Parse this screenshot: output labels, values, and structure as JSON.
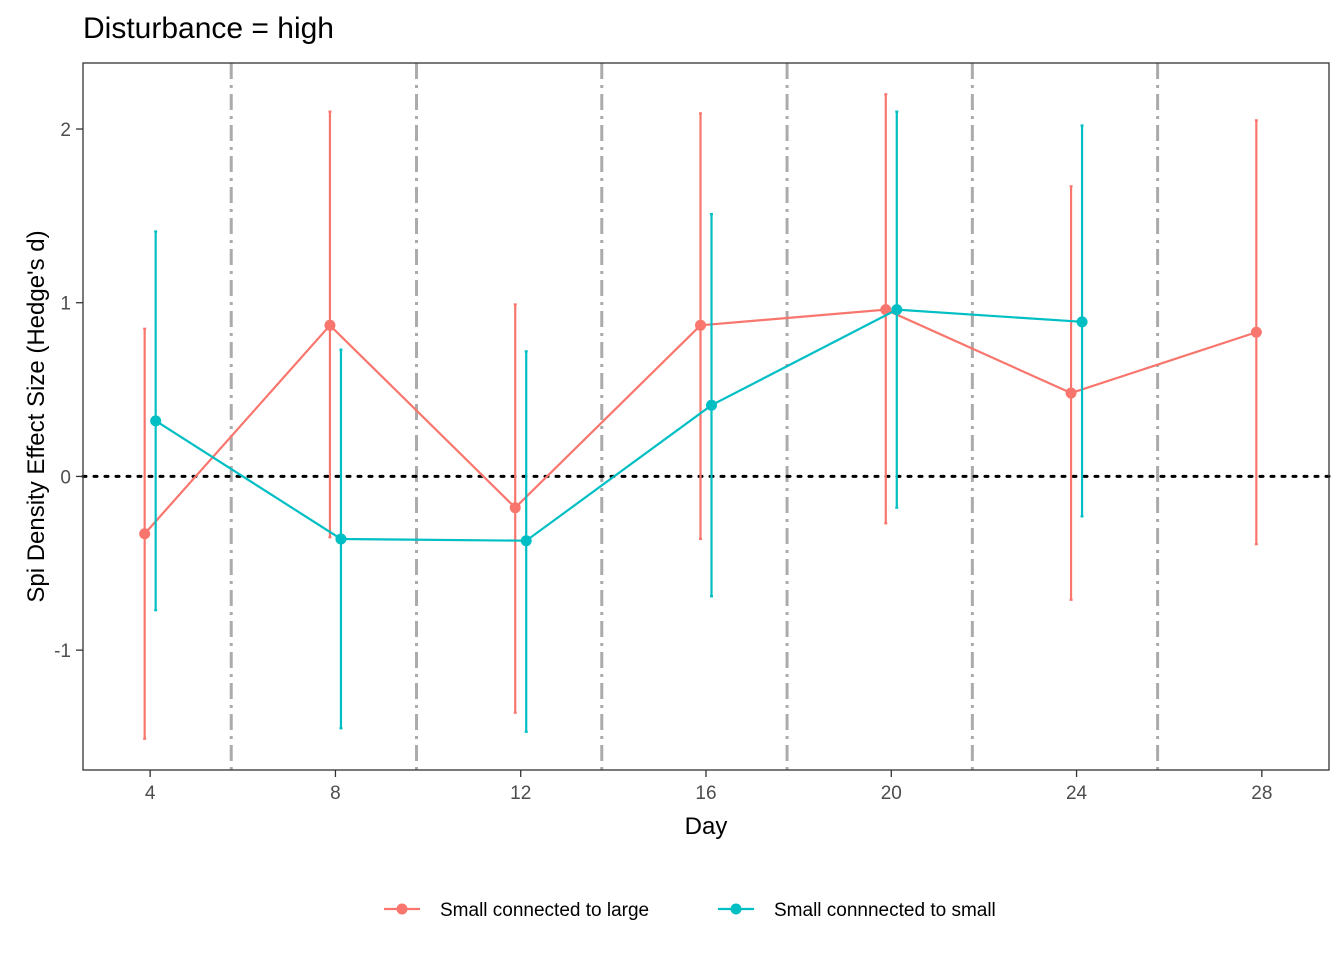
{
  "chart_data": {
    "type": "line",
    "title": "Disturbance = high",
    "xlabel": "Day",
    "ylabel": "Spi Density Effect Size (Hedge's d)",
    "xlim": [
      2.55,
      29.45
    ],
    "ylim": [
      -1.69,
      2.38
    ],
    "x_ticks": [
      4,
      8,
      12,
      16,
      20,
      24,
      28
    ],
    "y_ticks": [
      -1,
      0,
      1,
      2
    ],
    "reference_hline": 0,
    "reference_vlines": [
      5.75,
      9.75,
      13.75,
      17.75,
      21.75,
      25.75
    ],
    "grid": false,
    "legend_position": "bottom",
    "series": [
      {
        "name": "Small connected to large",
        "color": "#F8766D",
        "points": [
          {
            "x": 4,
            "y": -0.33,
            "lo": -1.51,
            "hi": 0.85
          },
          {
            "x": 8,
            "y": 0.87,
            "lo": -0.35,
            "hi": 2.1
          },
          {
            "x": 12,
            "y": -0.18,
            "lo": -1.36,
            "hi": 0.99
          },
          {
            "x": 16,
            "y": 0.87,
            "lo": -0.36,
            "hi": 2.09
          },
          {
            "x": 20,
            "y": 0.96,
            "lo": -0.27,
            "hi": 2.2
          },
          {
            "x": 24,
            "y": 0.48,
            "lo": -0.71,
            "hi": 1.67
          },
          {
            "x": 28,
            "y": 0.83,
            "lo": -0.39,
            "hi": 2.05
          }
        ]
      },
      {
        "name": "Small connnected to small",
        "color": "#00BFC4",
        "points": [
          {
            "x": 4,
            "y": 0.32,
            "lo": -0.77,
            "hi": 1.41
          },
          {
            "x": 8,
            "y": -0.36,
            "lo": -1.45,
            "hi": 0.73
          },
          {
            "x": 12,
            "y": -0.37,
            "lo": -1.47,
            "hi": 0.72
          },
          {
            "x": 16,
            "y": 0.41,
            "lo": -0.69,
            "hi": 1.51
          },
          {
            "x": 20,
            "y": 0.96,
            "lo": -0.18,
            "hi": 2.1
          },
          {
            "x": 24,
            "y": 0.89,
            "lo": -0.23,
            "hi": 2.02
          }
        ]
      }
    ]
  }
}
